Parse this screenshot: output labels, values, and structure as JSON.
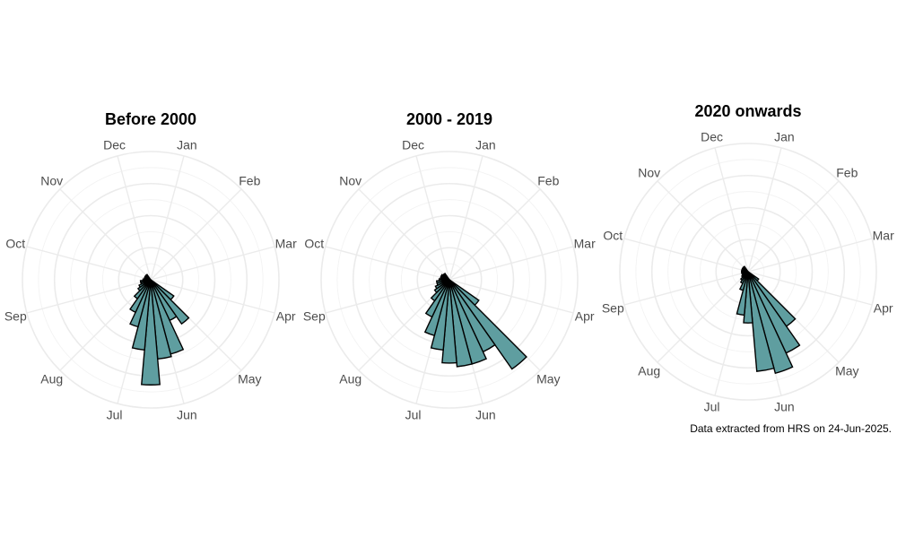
{
  "chart_data": [
    {
      "type": "bar",
      "polar": true,
      "title": "Before 2000",
      "month_labels": [
        "Jan",
        "Feb",
        "Mar",
        "Apr",
        "May",
        "Jun",
        "Jul",
        "Aug",
        "Sep",
        "Oct",
        "Nov",
        "Dec"
      ],
      "angles": [
        130,
        140,
        150,
        160,
        170,
        180,
        190,
        200,
        210,
        220,
        230,
        240,
        250,
        260,
        270,
        280,
        290,
        300,
        310,
        320
      ],
      "values": [
        0.22,
        0.42,
        0.35,
        0.6,
        0.62,
        0.82,
        0.55,
        0.38,
        0.28,
        0.18,
        0.12,
        0.1,
        0.08,
        0.08,
        0.06,
        0.05,
        0.05,
        0.05,
        0.05,
        0.05
      ],
      "rmax": 1.0,
      "bar_color": "#5f9ea0",
      "grid": true
    },
    {
      "type": "bar",
      "polar": true,
      "title": "2000 - 2019",
      "month_labels": [
        "Jan",
        "Feb",
        "Mar",
        "Apr",
        "May",
        "Jun",
        "Jul",
        "Aug",
        "Sep",
        "Oct",
        "Nov",
        "Dec"
      ],
      "angles": [
        130,
        140,
        150,
        160,
        170,
        180,
        190,
        200,
        210,
        220,
        230,
        240,
        250,
        260,
        270,
        280,
        290,
        300,
        310,
        320
      ],
      "values": [
        0.28,
        0.85,
        0.62,
        0.68,
        0.68,
        0.65,
        0.55,
        0.45,
        0.32,
        0.2,
        0.14,
        0.12,
        0.1,
        0.1,
        0.08,
        0.07,
        0.07,
        0.07,
        0.06,
        0.06
      ],
      "rmax": 1.0,
      "bar_color": "#5f9ea0",
      "grid": true
    },
    {
      "type": "bar",
      "polar": true,
      "title": "2020 onwards",
      "month_labels": [
        "Jan",
        "Feb",
        "Mar",
        "Apr",
        "May",
        "Jun",
        "Jul",
        "Aug",
        "Sep",
        "Oct",
        "Nov",
        "Dec"
      ],
      "angles": [
        130,
        140,
        150,
        160,
        170,
        180,
        190,
        200,
        210,
        220,
        230,
        240,
        250,
        260,
        270,
        280,
        290,
        300,
        310,
        320
      ],
      "values": [
        0.1,
        0.52,
        0.7,
        0.82,
        0.78,
        0.4,
        0.34,
        0.15,
        0.1,
        0.08,
        0.06,
        0.05,
        0.05,
        0.05,
        0.05,
        0.05,
        0.05,
        0.05,
        0.05,
        0.05
      ],
      "rmax": 1.0,
      "bar_color": "#5f9ea0",
      "grid": true
    }
  ],
  "caption": "Data extracted from HRS on 24-Jun-2025."
}
